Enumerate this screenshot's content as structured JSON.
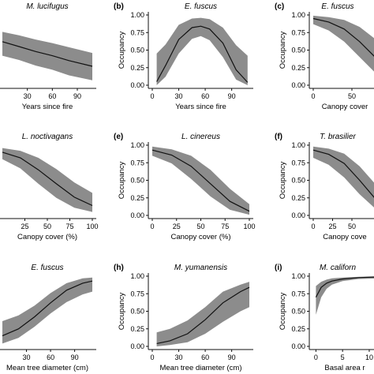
{
  "figure": {
    "ylabel": "Occupancy",
    "band_color": "#8c8c8c",
    "line_color": "#111111",
    "yticks": [
      "0.00",
      "0.25",
      "0.50",
      "0.75",
      "1.00"
    ]
  },
  "chart_data": [
    {
      "type": "line",
      "letter": "",
      "title": "M. lucifugus",
      "ylabel": "",
      "xlabel": "Years since fire",
      "x_ticks": [
        30,
        60,
        90
      ],
      "x_tick_labels": [
        "30",
        "60",
        "90"
      ],
      "xlim": [
        0,
        108
      ],
      "ylim": [
        0,
        1
      ],
      "show_y_axis": false,
      "x": [
        0,
        20,
        40,
        60,
        80,
        108
      ],
      "y": [
        0.62,
        0.55,
        0.48,
        0.42,
        0.35,
        0.27
      ],
      "lower": [
        0.42,
        0.36,
        0.28,
        0.22,
        0.14,
        0.07
      ],
      "upper": [
        0.76,
        0.71,
        0.65,
        0.6,
        0.54,
        0.46
      ]
    },
    {
      "type": "line",
      "letter": "(b)",
      "title": "E. fuscus",
      "ylabel": "Occupancy",
      "xlabel": "Years since fire",
      "x_ticks": [
        0,
        30,
        60,
        90
      ],
      "x_tick_labels": [
        "0",
        "30",
        "60",
        "90"
      ],
      "xlim": [
        0,
        110
      ],
      "ylim": [
        0,
        1
      ],
      "show_y_axis": true,
      "x": [
        5,
        15,
        30,
        45,
        55,
        65,
        80,
        95,
        108
      ],
      "y": [
        0.05,
        0.28,
        0.65,
        0.82,
        0.84,
        0.8,
        0.6,
        0.22,
        0.04
      ],
      "lower": [
        0.0,
        0.12,
        0.45,
        0.66,
        0.7,
        0.64,
        0.4,
        0.08,
        0.0
      ],
      "upper": [
        0.45,
        0.58,
        0.86,
        0.95,
        0.96,
        0.94,
        0.82,
        0.57,
        0.42
      ]
    },
    {
      "type": "line",
      "letter": "(c)",
      "title": "E. fuscus",
      "ylabel": "Occupancy",
      "xlabel": "Canopy cover",
      "x_ticks": [
        0,
        50
      ],
      "x_tick_labels": [
        "0",
        "50"
      ],
      "xlim": [
        0,
        100
      ],
      "ylim": [
        0,
        1
      ],
      "show_y_axis": true,
      "x": [
        0,
        20,
        40,
        60,
        80,
        100
      ],
      "y": [
        0.95,
        0.9,
        0.8,
        0.62,
        0.4,
        0.2
      ],
      "lower": [
        0.87,
        0.78,
        0.62,
        0.4,
        0.18,
        0.06
      ],
      "upper": [
        0.99,
        0.97,
        0.93,
        0.83,
        0.66,
        0.44
      ]
    },
    {
      "type": "line",
      "letter": "",
      "title": "L. noctivagans",
      "ylabel": "",
      "xlabel": "Canopy cover (%)",
      "x_ticks": [
        25,
        50,
        75,
        100
      ],
      "x_tick_labels": [
        "25",
        "50",
        "75",
        "100"
      ],
      "xlim": [
        0,
        100
      ],
      "ylim": [
        0,
        1
      ],
      "show_y_axis": false,
      "x": [
        0,
        20,
        40,
        60,
        80,
        100
      ],
      "y": [
        0.9,
        0.82,
        0.65,
        0.45,
        0.26,
        0.14
      ],
      "lower": [
        0.8,
        0.67,
        0.45,
        0.25,
        0.11,
        0.05
      ],
      "upper": [
        0.96,
        0.92,
        0.82,
        0.66,
        0.47,
        0.32
      ]
    },
    {
      "type": "line",
      "letter": "(e)",
      "title": "L. cinereus",
      "ylabel": "Occupancy",
      "xlabel": "Canopy cover (%)",
      "x_ticks": [
        0,
        25,
        50,
        75,
        100
      ],
      "x_tick_labels": [
        "0",
        "25",
        "50",
        "75",
        "100"
      ],
      "xlim": [
        0,
        100
      ],
      "ylim": [
        0,
        1
      ],
      "show_y_axis": true,
      "x": [
        0,
        20,
        40,
        60,
        80,
        100
      ],
      "y": [
        0.93,
        0.86,
        0.7,
        0.45,
        0.2,
        0.06
      ],
      "lower": [
        0.85,
        0.74,
        0.52,
        0.27,
        0.08,
        0.01
      ],
      "upper": [
        0.98,
        0.94,
        0.85,
        0.65,
        0.38,
        0.16
      ]
    },
    {
      "type": "line",
      "letter": "(f)",
      "title": "T. brasilier",
      "ylabel": "Occupancy",
      "xlabel": "Canopy cove",
      "x_ticks": [
        0,
        25,
        50
      ],
      "x_tick_labels": [
        "0",
        "25",
        "50"
      ],
      "xlim": [
        0,
        100
      ],
      "ylim": [
        0,
        1
      ],
      "show_y_axis": true,
      "x": [
        0,
        20,
        40,
        60,
        80,
        100
      ],
      "y": [
        0.93,
        0.87,
        0.74,
        0.5,
        0.24,
        0.08
      ],
      "lower": [
        0.82,
        0.72,
        0.54,
        0.3,
        0.1,
        0.02
      ],
      "upper": [
        0.98,
        0.95,
        0.88,
        0.7,
        0.45,
        0.24
      ]
    },
    {
      "type": "line",
      "letter": "",
      "title": "E. fuscus",
      "ylabel": "",
      "xlabel": "Mean tree diameter (cm)",
      "x_ticks": [
        30,
        60,
        90
      ],
      "x_tick_labels": [
        "30",
        "60",
        "90"
      ],
      "xlim": [
        0,
        112
      ],
      "ylim": [
        0,
        1
      ],
      "show_y_axis": false,
      "x": [
        0,
        20,
        40,
        60,
        80,
        100,
        112
      ],
      "y": [
        0.15,
        0.25,
        0.42,
        0.62,
        0.8,
        0.9,
        0.93
      ],
      "lower": [
        0.04,
        0.12,
        0.28,
        0.47,
        0.63,
        0.74,
        0.78
      ],
      "upper": [
        0.36,
        0.44,
        0.58,
        0.76,
        0.9,
        0.97,
        0.98
      ]
    },
    {
      "type": "line",
      "letter": "(h)",
      "title": "M. yumanensis",
      "ylabel": "Occupancy",
      "xlabel": "Mean tree diameter (cm)",
      "x_ticks": [
        0,
        30,
        60,
        90
      ],
      "x_tick_labels": [
        "0",
        "30",
        "60",
        "90"
      ],
      "xlim": [
        0,
        110
      ],
      "ylim": [
        0,
        1
      ],
      "show_y_axis": true,
      "x": [
        5,
        20,
        40,
        60,
        80,
        100,
        110
      ],
      "y": [
        0.04,
        0.08,
        0.18,
        0.38,
        0.62,
        0.78,
        0.84
      ],
      "lower": [
        0.0,
        0.02,
        0.06,
        0.18,
        0.35,
        0.5,
        0.56
      ],
      "upper": [
        0.2,
        0.25,
        0.37,
        0.56,
        0.78,
        0.88,
        0.92
      ]
    },
    {
      "type": "line",
      "letter": "(i)",
      "title": "M. californ",
      "ylabel": "Occupancy",
      "xlabel": "Basal area r",
      "x_ticks": [
        0,
        5,
        10
      ],
      "x_tick_labels": [
        "0",
        "5",
        "10"
      ],
      "xlim": [
        -0.5,
        14
      ],
      "ylim": [
        0,
        1
      ],
      "show_y_axis": true,
      "x": [
        0,
        1,
        2,
        3,
        5,
        8,
        12,
        14
      ],
      "y": [
        0.7,
        0.84,
        0.9,
        0.93,
        0.96,
        0.98,
        0.99,
        0.99
      ],
      "lower": [
        0.45,
        0.7,
        0.82,
        0.88,
        0.93,
        0.96,
        0.97,
        0.97
      ],
      "upper": [
        0.86,
        0.92,
        0.95,
        0.97,
        0.98,
        0.99,
        1.0,
        1.0
      ]
    }
  ]
}
